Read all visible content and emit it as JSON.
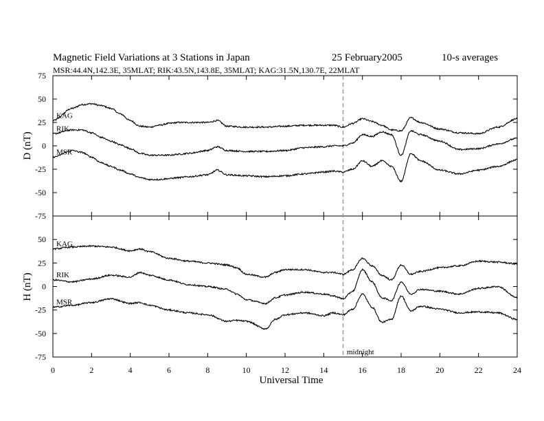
{
  "header": {
    "title": "Magnetic Field Variations at 3 Stations in Japan",
    "date": "25 February2005",
    "averaging": "10-s averages",
    "stations_line": "MSR:44.4N,142.3E, 35MLAT;   RIK:43.5N,143.8E, 35MLAT;   KAG:31.5N,130.7E, 22MLAT"
  },
  "chart_data": [
    {
      "type": "line",
      "ylabel": "D (nT)",
      "ylim": [
        -75,
        75
      ],
      "yticks": [
        "75",
        "50",
        "25",
        "0",
        "-25",
        "-50",
        "-75"
      ],
      "xlim": [
        0,
        24
      ],
      "series": [
        {
          "name": "KAG",
          "x": [
            0,
            1,
            1.5,
            2,
            2.5,
            3,
            3.5,
            4,
            4.5,
            5,
            5.5,
            6,
            6.5,
            7,
            8,
            8.5,
            9,
            10,
            11,
            12,
            13,
            14,
            14.5,
            15,
            15.5,
            16,
            16.5,
            17,
            17.5,
            18,
            18.5,
            19,
            20,
            21,
            22,
            23,
            24
          ],
          "values": [
            27,
            40,
            44,
            45,
            43,
            40,
            34,
            27,
            21,
            20,
            22,
            24,
            25,
            25,
            25,
            27,
            21,
            20,
            20,
            21,
            22,
            22,
            22,
            20,
            24,
            29,
            26,
            22,
            17,
            16,
            30,
            25,
            18,
            14,
            13,
            20,
            29
          ]
        },
        {
          "name": "RIK",
          "x": [
            0,
            1,
            1.5,
            2,
            2.5,
            3,
            3.5,
            4,
            4.5,
            5,
            5.5,
            6,
            6.5,
            7,
            8,
            8.5,
            9,
            10,
            11,
            12,
            13,
            14,
            14.5,
            15,
            15.5,
            16,
            16.5,
            17,
            17.5,
            18,
            18.5,
            19,
            20,
            21,
            22,
            23,
            24
          ],
          "values": [
            13,
            17,
            17,
            14,
            9,
            5,
            1,
            -3,
            -8,
            -10,
            -10,
            -10,
            -9,
            -8,
            -5,
            -1,
            -5,
            -6,
            -6,
            -5,
            -2,
            -1,
            0,
            0,
            3,
            12,
            10,
            15,
            12,
            -10,
            16,
            12,
            5,
            -4,
            -3,
            2,
            8
          ]
        },
        {
          "name": "MSR",
          "x": [
            0,
            1,
            1.5,
            2,
            2.5,
            3,
            3.5,
            4,
            4.5,
            5,
            5.5,
            6,
            6.5,
            7,
            8,
            8.5,
            9,
            10,
            11,
            12,
            13,
            14,
            14.5,
            15,
            15.5,
            16,
            16.5,
            17,
            17.5,
            18,
            18.5,
            19,
            20,
            21,
            22,
            23,
            24
          ],
          "values": [
            -12,
            -5,
            -7,
            -12,
            -18,
            -22,
            -26,
            -30,
            -34,
            -36,
            -36,
            -35,
            -34,
            -33,
            -31,
            -26,
            -31,
            -32,
            -33,
            -32,
            -30,
            -28,
            -27,
            -28,
            -25,
            -16,
            -22,
            -16,
            -22,
            -38,
            -8,
            -16,
            -26,
            -30,
            -26,
            -22,
            -15
          ]
        }
      ]
    },
    {
      "type": "line",
      "ylabel": "H (nT)",
      "ylim": [
        -75,
        75
      ],
      "yticks": [
        "50",
        "25",
        "0",
        "-25",
        "-50",
        "-75"
      ],
      "xlim": [
        0,
        24
      ],
      "xlabel": "Universal Time",
      "xticks": [
        "0",
        "2",
        "4",
        "6",
        "8",
        "10",
        "12",
        "14",
        "16",
        "18",
        "20",
        "22",
        "24"
      ],
      "series": [
        {
          "name": "KAG",
          "x": [
            0,
            1,
            2,
            3,
            4,
            4.5,
            5,
            6,
            7,
            8,
            9,
            9.5,
            10,
            11,
            11.5,
            12,
            13,
            14,
            14.5,
            15,
            15.5,
            16,
            16.5,
            17,
            17.5,
            18,
            18.5,
            19,
            20,
            21,
            22,
            23,
            24
          ],
          "values": [
            40,
            42,
            43,
            42,
            38,
            40,
            37,
            30,
            27,
            25,
            23,
            20,
            13,
            10,
            15,
            18,
            18,
            15,
            15,
            13,
            18,
            30,
            22,
            12,
            7,
            23,
            13,
            16,
            20,
            22,
            27,
            26,
            24
          ]
        },
        {
          "name": "RIK",
          "x": [
            0,
            1,
            2,
            3,
            4,
            4.5,
            5,
            6,
            7,
            8,
            9,
            9.5,
            10,
            11,
            11.5,
            12,
            13,
            14,
            14.5,
            15,
            15.5,
            16,
            16.5,
            17,
            17.5,
            18,
            18.5,
            19,
            20,
            21,
            22,
            23,
            24
          ],
          "values": [
            7,
            5,
            8,
            12,
            10,
            15,
            12,
            7,
            2,
            0,
            -3,
            -8,
            -14,
            -18,
            -12,
            -9,
            -6,
            -8,
            -10,
            -13,
            -5,
            18,
            5,
            -12,
            -15,
            5,
            -8,
            -3,
            -5,
            -8,
            -2,
            0,
            -12
          ]
        },
        {
          "name": "MSR",
          "x": [
            0,
            1,
            2,
            3,
            4,
            4.5,
            5,
            6,
            7,
            8,
            9,
            9.5,
            10,
            11,
            11.5,
            12,
            13,
            14,
            14.5,
            15,
            15.5,
            16,
            16.5,
            17,
            17.5,
            18,
            18.5,
            19,
            20,
            21,
            22,
            23,
            24
          ],
          "values": [
            -22,
            -20,
            -17,
            -13,
            -18,
            -17,
            -20,
            -25,
            -28,
            -30,
            -37,
            -36,
            -37,
            -45,
            -35,
            -30,
            -28,
            -31,
            -28,
            -30,
            -24,
            -8,
            -22,
            -38,
            -35,
            -10,
            -26,
            -21,
            -24,
            -28,
            -27,
            -28,
            -35
          ]
        }
      ]
    }
  ],
  "annotations": {
    "midnight_label": "midnight",
    "midnight_ut": 15
  }
}
